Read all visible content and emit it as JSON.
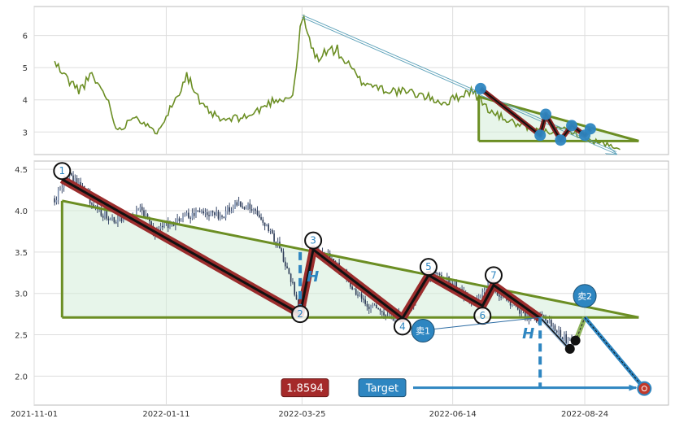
{
  "chart_data": [
    {
      "type": "line",
      "panel": "overview",
      "y_ticks": [
        "3",
        "4",
        "5",
        "6"
      ],
      "y_range": [
        2.3,
        6.9
      ],
      "x_range": [
        "2021-11-01",
        "2022-10-08"
      ],
      "grid": true,
      "line_color": "#6b8e23",
      "price_keypoints": [
        {
          "date": "2021-11-12",
          "value": 5.15
        },
        {
          "date": "2021-11-18",
          "value": 4.7
        },
        {
          "date": "2021-11-25",
          "value": 4.3
        },
        {
          "date": "2021-12-02",
          "value": 4.75
        },
        {
          "date": "2021-12-10",
          "value": 4.1
        },
        {
          "date": "2021-12-16",
          "value": 3.0
        },
        {
          "date": "2021-12-25",
          "value": 3.55
        },
        {
          "date": "2022-01-05",
          "value": 2.95
        },
        {
          "date": "2022-01-15",
          "value": 3.9
        },
        {
          "date": "2022-01-22",
          "value": 4.8
        },
        {
          "date": "2022-01-30",
          "value": 3.8
        },
        {
          "date": "2022-02-10",
          "value": 3.35
        },
        {
          "date": "2022-02-25",
          "value": 3.5
        },
        {
          "date": "2022-03-10",
          "value": 4.0
        },
        {
          "date": "2022-03-20",
          "value": 4.1
        },
        {
          "date": "2022-03-25",
          "value": 6.6
        },
        {
          "date": "2022-04-01",
          "value": 5.3
        },
        {
          "date": "2022-04-12",
          "value": 5.6
        },
        {
          "date": "2022-04-25",
          "value": 4.6
        },
        {
          "date": "2022-05-10",
          "value": 4.3
        },
        {
          "date": "2022-05-25",
          "value": 4.2
        },
        {
          "date": "2022-06-10",
          "value": 3.9
        },
        {
          "date": "2022-06-24",
          "value": 4.3
        },
        {
          "date": "2022-07-05",
          "value": 3.6
        },
        {
          "date": "2022-07-20",
          "value": 3.2
        },
        {
          "date": "2022-08-01",
          "value": 3.0
        },
        {
          "date": "2022-08-15",
          "value": 3.1
        },
        {
          "date": "2022-08-24",
          "value": 2.8
        },
        {
          "date": "2022-09-05",
          "value": 2.6
        },
        {
          "date": "2022-09-12",
          "value": 2.4
        }
      ],
      "triangle": {
        "apex_left": {
          "date": "2022-06-28",
          "value": 4.1
        },
        "top_right": {
          "date": "2022-09-22",
          "value": 2.72
        },
        "base": 2.72
      },
      "arrow_from": {
        "date": "2022-03-25",
        "value": 6.6
      },
      "arrow_to": {
        "date": "2022-09-10",
        "value": 2.35
      },
      "markers": [
        {
          "date": "2022-06-29",
          "value": 4.35
        },
        {
          "date": "2022-07-31",
          "value": 2.9
        },
        {
          "date": "2022-08-03",
          "value": 3.55
        },
        {
          "date": "2022-08-11",
          "value": 2.75
        },
        {
          "date": "2022-08-17",
          "value": 3.2
        },
        {
          "date": "2022-08-24",
          "value": 2.9
        },
        {
          "date": "2022-08-27",
          "value": 3.1
        }
      ]
    },
    {
      "type": "candlestick",
      "panel": "detail",
      "x_ticks": [
        "2021-11-01",
        "2022-01-11",
        "2022-03-25",
        "2022-06-14",
        "2022-08-24"
      ],
      "y_ticks": [
        "2.0",
        "2.5",
        "3.0",
        "3.5",
        "4.0",
        "4.5"
      ],
      "y_range": [
        1.65,
        4.6
      ],
      "x_range": [
        "2021-11-01",
        "2022-10-08"
      ],
      "grid": true,
      "price_keypoints": [
        {
          "date": "2021-11-12",
          "value": 4.15
        },
        {
          "date": "2021-11-20",
          "value": 4.4
        },
        {
          "date": "2021-11-28",
          "value": 4.25
        },
        {
          "date": "2021-12-05",
          "value": 4.0
        },
        {
          "date": "2021-12-15",
          "value": 3.9
        },
        {
          "date": "2021-12-28",
          "value": 4.0
        },
        {
          "date": "2022-01-05",
          "value": 3.75
        },
        {
          "date": "2022-01-12",
          "value": 3.85
        },
        {
          "date": "2022-01-20",
          "value": 3.9
        },
        {
          "date": "2022-02-01",
          "value": 4.0
        },
        {
          "date": "2022-02-10",
          "value": 3.95
        },
        {
          "date": "2022-02-18",
          "value": 4.1
        },
        {
          "date": "2022-02-26",
          "value": 4.0
        },
        {
          "date": "2022-03-06",
          "value": 3.8
        },
        {
          "date": "2022-03-14",
          "value": 3.5
        },
        {
          "date": "2022-03-20",
          "value": 3.1
        },
        {
          "date": "2022-03-24",
          "value": 2.75
        },
        {
          "date": "2022-03-31",
          "value": 3.5
        },
        {
          "date": "2022-04-08",
          "value": 3.45
        },
        {
          "date": "2022-04-18",
          "value": 3.2
        },
        {
          "date": "2022-04-28",
          "value": 2.85
        },
        {
          "date": "2022-05-10",
          "value": 2.75
        },
        {
          "date": "2022-05-18",
          "value": 2.7
        },
        {
          "date": "2022-05-30",
          "value": 3.15
        },
        {
          "date": "2022-06-05",
          "value": 3.25
        },
        {
          "date": "2022-06-15",
          "value": 3.1
        },
        {
          "date": "2022-06-25",
          "value": 2.85
        },
        {
          "date": "2022-07-03",
          "value": 3.1
        },
        {
          "date": "2022-07-12",
          "value": 2.95
        },
        {
          "date": "2022-07-22",
          "value": 2.75
        },
        {
          "date": "2022-07-31",
          "value": 2.7
        },
        {
          "date": "2022-08-08",
          "value": 2.6
        },
        {
          "date": "2022-08-15",
          "value": 2.4
        },
        {
          "date": "2022-08-20",
          "value": 2.45
        }
      ],
      "triangle": {
        "apex_left": {
          "date": "2021-11-16",
          "value": 4.12
        },
        "top_right": {
          "date": "2022-09-22",
          "value": 2.71
        },
        "base": 2.71
      },
      "wave_points": [
        {
          "label": "1",
          "date": "2021-11-16",
          "value": 4.48
        },
        {
          "label": "2",
          "date": "2022-03-24",
          "value": 2.75
        },
        {
          "label": "3",
          "date": "2022-03-31",
          "value": 3.64
        },
        {
          "label": "4",
          "date": "2022-05-18",
          "value": 2.6
        },
        {
          "label": "5",
          "date": "2022-06-01",
          "value": 3.32
        },
        {
          "label": "6",
          "date": "2022-06-30",
          "value": 2.73
        },
        {
          "label": "7",
          "date": "2022-07-06",
          "value": 3.22
        }
      ],
      "zigzag": [
        {
          "date": "2021-11-16",
          "value": 4.38
        },
        {
          "date": "2022-03-24",
          "value": 2.75
        },
        {
          "date": "2022-03-31",
          "value": 3.53
        },
        {
          "date": "2022-05-18",
          "value": 2.7
        },
        {
          "date": "2022-06-01",
          "value": 3.22
        },
        {
          "date": "2022-06-30",
          "value": 2.85
        },
        {
          "date": "2022-07-06",
          "value": 3.1
        },
        {
          "date": "2022-07-31",
          "value": 2.7
        }
      ],
      "projection": [
        {
          "date": "2022-07-31",
          "value": 2.71
        },
        {
          "date": "2022-08-16",
          "value": 2.32
        }
      ],
      "green_segment": [
        {
          "date": "2022-08-19",
          "value": 2.42
        },
        {
          "date": "2022-08-24",
          "value": 2.71
        }
      ],
      "target_path": [
        {
          "date": "2022-08-24",
          "value": 2.71
        },
        {
          "date": "2022-09-25",
          "value": 1.85
        }
      ],
      "sell_markers": [
        {
          "label": "卖1",
          "date": "2022-05-29",
          "value": 2.55
        },
        {
          "label": "卖2",
          "date": "2022-08-24",
          "value": 2.97
        }
      ],
      "black_dots": [
        {
          "date": "2022-08-16",
          "value": 2.33
        },
        {
          "date": "2022-08-19",
          "value": 2.43
        }
      ],
      "h_markers": [
        {
          "date": "2022-03-24",
          "from": 3.5,
          "to": 2.75,
          "label": "H"
        },
        {
          "date": "2022-07-31",
          "from": 2.71,
          "to": 1.85,
          "label": "H"
        }
      ],
      "target_value": "1.8594",
      "target_label": "Target",
      "target_point": {
        "date": "2022-09-25",
        "value": 1.85
      }
    }
  ]
}
